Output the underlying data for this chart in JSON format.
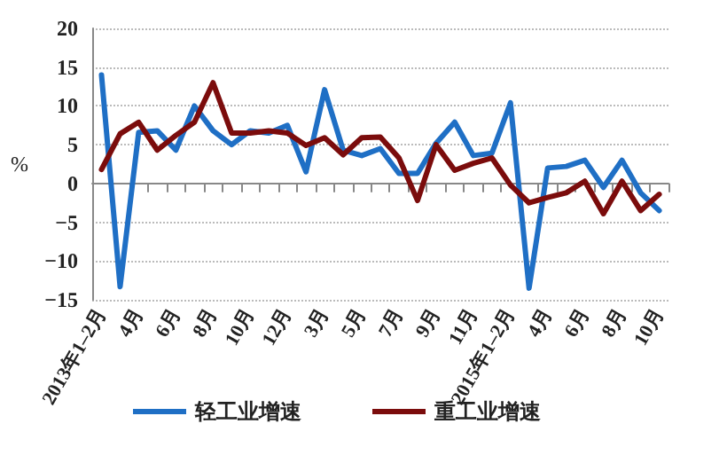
{
  "chart_data": {
    "type": "line",
    "ylabel": "%",
    "categories": [
      "2013年1–2月",
      null,
      "4月",
      null,
      "6月",
      null,
      "8月",
      null,
      "10月",
      null,
      "12月",
      null,
      "3月",
      null,
      "5月",
      null,
      "7月",
      null,
      "9月",
      null,
      "11月",
      null,
      "2015年1–2月",
      null,
      "4月",
      null,
      "6月",
      null,
      "8月",
      null,
      "10月"
    ],
    "series": [
      {
        "name": "轻工业增速",
        "color": "#1f6fc5",
        "values": [
          14,
          -13.3,
          6.6,
          6.8,
          4.3,
          10,
          6.8,
          5,
          6.8,
          6.5,
          7.5,
          1.5,
          12.1,
          4.3,
          3.6,
          4.5,
          1.3,
          1.3,
          5.2,
          7.9,
          3.6,
          3.9,
          10.4,
          -13.5,
          2,
          2.2,
          3,
          -0.5,
          3,
          -1.2,
          -3.5
        ]
      },
      {
        "name": "重工业增速",
        "color": "#7b0c0c",
        "values": [
          1.8,
          6.4,
          7.9,
          4.3,
          6.2,
          7.9,
          13,
          6.5,
          6.5,
          6.8,
          6.5,
          4.9,
          5.9,
          3.7,
          5.9,
          6,
          3.3,
          -2.2,
          5,
          1.7,
          2.6,
          3.3,
          -0.2,
          -2.5,
          -1.8,
          -1.2,
          0.3,
          -3.9,
          0.3,
          -3.5,
          -1.4
        ]
      }
    ],
    "ylim": [
      -15,
      20
    ],
    "yticks": [
      -15,
      -10,
      -5,
      0,
      5,
      10,
      15,
      20
    ],
    "grid": "y",
    "legend": "bottom",
    "marker": "none",
    "line_style": "solid"
  }
}
